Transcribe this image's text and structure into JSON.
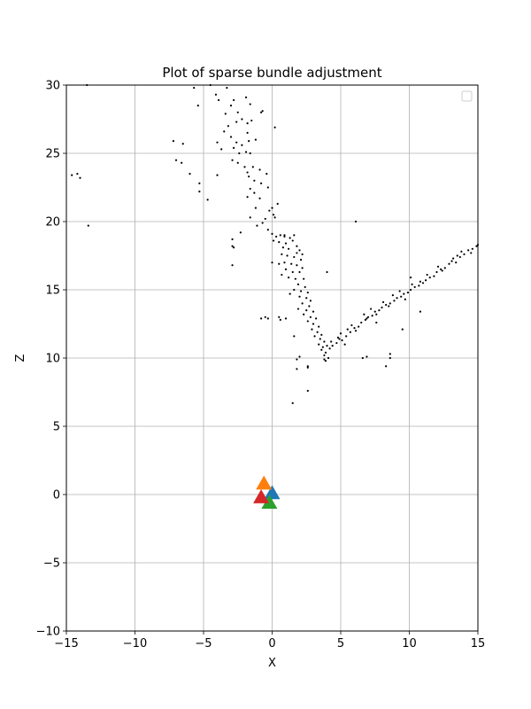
{
  "chart_data": {
    "type": "scatter",
    "title": "Plot of sparse bundle adjustment",
    "xlabel": "X",
    "ylabel": "Z",
    "xlim": [
      -15,
      15
    ],
    "ylim": [
      -10,
      30
    ],
    "xticks": [
      -15,
      -10,
      -5,
      0,
      5,
      10,
      15
    ],
    "yticks": [
      -10,
      -5,
      0,
      5,
      10,
      15,
      20,
      25,
      30
    ],
    "xtick_labels": [
      "−15",
      "−10",
      "−5",
      "0",
      "5",
      "10",
      "15"
    ],
    "ytick_labels": [
      "−10",
      "−5",
      "0",
      "5",
      "10",
      "15",
      "20",
      "25",
      "30"
    ],
    "grid": true,
    "legend": {
      "visible": true,
      "placement": "top-right",
      "entries": []
    },
    "cameras": [
      {
        "x": 0.0,
        "y": 0.1,
        "color": "#1f77b4",
        "marker": "triangle"
      },
      {
        "x": -0.6,
        "y": 0.8,
        "color": "#ff7f0e",
        "marker": "triangle"
      },
      {
        "x": -0.2,
        "y": -0.6,
        "color": "#2ca02c",
        "marker": "triangle"
      },
      {
        "x": -0.8,
        "y": -0.2,
        "color": "#d62728",
        "marker": "triangle"
      }
    ],
    "points_color": "#000000",
    "points": [
      [
        -13.5,
        30.0
      ],
      [
        -14.6,
        23.4
      ],
      [
        -14.2,
        23.5
      ],
      [
        -14.0,
        23.2
      ],
      [
        -13.4,
        19.7
      ],
      [
        -4.5,
        30.0
      ],
      [
        -3.3,
        29.8
      ],
      [
        -5.7,
        29.8
      ],
      [
        -5.4,
        28.5
      ],
      [
        -2.8,
        28.9
      ],
      [
        -1.9,
        29.1
      ],
      [
        -3.0,
        28.5
      ],
      [
        -2.5,
        28.0
      ],
      [
        -1.6,
        28.6
      ],
      [
        -0.8,
        28.0
      ],
      [
        -0.7,
        28.1
      ],
      [
        -3.4,
        27.9
      ],
      [
        -3.9,
        28.9
      ],
      [
        -4.1,
        29.3
      ],
      [
        -2.2,
        27.5
      ],
      [
        -1.8,
        27.2
      ],
      [
        -1.5,
        27.4
      ],
      [
        -3.2,
        27.0
      ],
      [
        -2.6,
        27.3
      ],
      [
        -1.8,
        26.5
      ],
      [
        -3.5,
        26.6
      ],
      [
        -3.0,
        26.2
      ],
      [
        -2.6,
        25.8
      ],
      [
        -4.0,
        25.8
      ],
      [
        0.2,
        26.9
      ],
      [
        -2.2,
        25.6
      ],
      [
        -1.7,
        25.9
      ],
      [
        -1.2,
        26.0
      ],
      [
        -2.8,
        25.4
      ],
      [
        -3.7,
        25.3
      ],
      [
        -2.4,
        25.0
      ],
      [
        -1.9,
        25.1
      ],
      [
        -1.6,
        25.0
      ],
      [
        -2.9,
        24.5
      ],
      [
        -2.5,
        24.3
      ],
      [
        -2.0,
        24.0
      ],
      [
        -1.4,
        24.0
      ],
      [
        -1.8,
        23.6
      ],
      [
        -0.9,
        23.8
      ],
      [
        -1.7,
        23.3
      ],
      [
        -0.4,
        23.5
      ],
      [
        -1.3,
        23.0
      ],
      [
        -0.8,
        22.8
      ],
      [
        -1.6,
        22.4
      ],
      [
        -0.3,
        22.5
      ],
      [
        -1.3,
        22.1
      ],
      [
        -1.8,
        21.8
      ],
      [
        -0.9,
        21.7
      ],
      [
        0.4,
        21.3
      ],
      [
        0.0,
        21.0
      ],
      [
        -1.2,
        21.0
      ],
      [
        -0.2,
        20.8
      ],
      [
        0.1,
        20.5
      ],
      [
        -1.6,
        20.3
      ],
      [
        -0.5,
        20.2
      ],
      [
        0.2,
        20.3
      ],
      [
        -0.7,
        19.9
      ],
      [
        -1.1,
        19.7
      ],
      [
        -0.3,
        19.4
      ],
      [
        -2.3,
        19.2
      ],
      [
        -7.2,
        25.9
      ],
      [
        -7.0,
        24.5
      ],
      [
        -6.6,
        24.3
      ],
      [
        -6.5,
        25.7
      ],
      [
        -6.0,
        23.5
      ],
      [
        -5.3,
        22.8
      ],
      [
        -5.3,
        22.2
      ],
      [
        -4.7,
        21.6
      ],
      [
        -4.0,
        23.4
      ],
      [
        6.1,
        20.0
      ],
      [
        -2.9,
        18.7
      ],
      [
        -2.9,
        18.2
      ],
      [
        -2.8,
        18.1
      ],
      [
        -2.9,
        16.8
      ],
      [
        0.0,
        19.1
      ],
      [
        0.3,
        18.9
      ],
      [
        0.6,
        19.0
      ],
      [
        0.9,
        19.0
      ],
      [
        1.3,
        18.8
      ],
      [
        0.1,
        18.6
      ],
      [
        0.5,
        18.5
      ],
      [
        1.0,
        18.4
      ],
      [
        1.5,
        18.6
      ],
      [
        0.8,
        18.1
      ],
      [
        1.2,
        18.0
      ],
      [
        1.8,
        18.2
      ],
      [
        2.0,
        17.9
      ],
      [
        0.7,
        17.6
      ],
      [
        1.1,
        17.5
      ],
      [
        1.6,
        17.4
      ],
      [
        2.1,
        17.2
      ],
      [
        0.9,
        17.0
      ],
      [
        1.4,
        16.9
      ],
      [
        1.8,
        16.8
      ],
      [
        2.2,
        16.6
      ],
      [
        1.0,
        16.5
      ],
      [
        1.5,
        16.3
      ],
      [
        2.0,
        16.3
      ],
      [
        0.7,
        16.1
      ],
      [
        1.2,
        15.9
      ],
      [
        1.7,
        15.8
      ],
      [
        2.3,
        15.8
      ],
      [
        1.9,
        15.4
      ],
      [
        2.4,
        15.2
      ],
      [
        1.6,
        15.0
      ],
      [
        2.1,
        14.9
      ],
      [
        2.6,
        14.8
      ],
      [
        1.3,
        14.7
      ],
      [
        2.0,
        14.5
      ],
      [
        2.5,
        14.4
      ],
      [
        2.8,
        14.2
      ],
      [
        2.2,
        14.0
      ],
      [
        2.7,
        13.8
      ],
      [
        1.9,
        13.6
      ],
      [
        2.5,
        13.5
      ],
      [
        3.0,
        13.4
      ],
      [
        2.3,
        13.2
      ],
      [
        2.8,
        13.0
      ],
      [
        3.2,
        12.9
      ],
      [
        2.6,
        12.7
      ],
      [
        3.0,
        12.5
      ],
      [
        3.4,
        12.3
      ],
      [
        2.9,
        12.1
      ],
      [
        3.3,
        11.9
      ],
      [
        3.6,
        11.7
      ],
      [
        3.1,
        11.6
      ],
      [
        3.5,
        11.4
      ],
      [
        3.8,
        11.2
      ],
      [
        3.4,
        11.0
      ],
      [
        3.7,
        10.8
      ],
      [
        4.0,
        10.9
      ],
      [
        3.6,
        10.6
      ],
      [
        3.9,
        10.4
      ],
      [
        4.2,
        10.7
      ],
      [
        3.8,
        10.2
      ],
      [
        4.1,
        10.0
      ],
      [
        3.9,
        9.8
      ],
      [
        4.4,
        10.9
      ],
      [
        4.7,
        11.1
      ],
      [
        0.0,
        17.0
      ],
      [
        0.5,
        16.9
      ],
      [
        1.8,
        17.7
      ],
      [
        2.2,
        17.6
      ],
      [
        0.9,
        18.9
      ],
      [
        1.6,
        19.0
      ],
      [
        4.3,
        11.2
      ],
      [
        4.8,
        11.5
      ],
      [
        5.1,
        11.3
      ],
      [
        5.4,
        11.6
      ],
      [
        5.0,
        11.8
      ],
      [
        5.7,
        11.9
      ],
      [
        6.0,
        12.2
      ],
      [
        5.8,
        12.4
      ],
      [
        6.3,
        12.3
      ],
      [
        6.5,
        12.6
      ],
      [
        6.1,
        12.0
      ],
      [
        6.8,
        12.8
      ],
      [
        7.0,
        13.0
      ],
      [
        6.7,
        13.2
      ],
      [
        7.3,
        13.1
      ],
      [
        7.5,
        13.4
      ],
      [
        7.2,
        13.6
      ],
      [
        7.8,
        13.5
      ],
      [
        8.0,
        13.7
      ],
      [
        8.3,
        13.9
      ],
      [
        8.1,
        14.1
      ],
      [
        8.6,
        14.0
      ],
      [
        8.9,
        14.2
      ],
      [
        9.1,
        14.4
      ],
      [
        8.8,
        14.6
      ],
      [
        9.4,
        14.5
      ],
      [
        9.6,
        14.7
      ],
      [
        9.3,
        14.9
      ],
      [
        9.9,
        14.8
      ],
      [
        10.1,
        15.0
      ],
      [
        10.4,
        15.2
      ],
      [
        10.2,
        15.4
      ],
      [
        10.7,
        15.3
      ],
      [
        11.0,
        15.5
      ],
      [
        11.2,
        15.7
      ],
      [
        11.5,
        15.9
      ],
      [
        11.3,
        16.1
      ],
      [
        11.8,
        16.0
      ],
      [
        12.0,
        16.3
      ],
      [
        12.3,
        16.5
      ],
      [
        12.1,
        16.7
      ],
      [
        12.6,
        16.6
      ],
      [
        12.9,
        16.9
      ],
      [
        13.1,
        17.1
      ],
      [
        13.4,
        17.0
      ],
      [
        13.2,
        17.3
      ],
      [
        13.7,
        17.4
      ],
      [
        14.0,
        17.6
      ],
      [
        13.8,
        17.8
      ],
      [
        14.3,
        17.9
      ],
      [
        14.6,
        18.0
      ],
      [
        14.9,
        18.2
      ],
      [
        15.0,
        18.3
      ],
      [
        14.5,
        17.7
      ],
      [
        13.5,
        17.5
      ],
      [
        12.4,
        16.4
      ],
      [
        10.8,
        15.6
      ],
      [
        9.7,
        14.3
      ],
      [
        8.5,
        13.8
      ],
      [
        7.6,
        13.2
      ],
      [
        6.9,
        12.9
      ],
      [
        5.5,
        12.1
      ],
      [
        4.9,
        11.4
      ],
      [
        5.3,
        11.0
      ],
      [
        -0.8,
        12.9
      ],
      [
        -0.5,
        13.0
      ],
      [
        -0.3,
        12.9
      ],
      [
        0.5,
        13.0
      ],
      [
        0.6,
        12.8
      ],
      [
        1.0,
        12.9
      ],
      [
        1.6,
        11.6
      ],
      [
        1.8,
        9.9
      ],
      [
        1.8,
        9.2
      ],
      [
        2.0,
        10.1
      ],
      [
        2.6,
        9.4
      ],
      [
        2.6,
        9.3
      ],
      [
        3.8,
        9.9
      ],
      [
        4.0,
        16.3
      ],
      [
        1.5,
        6.7
      ],
      [
        2.6,
        7.6
      ],
      [
        6.6,
        10.0
      ],
      [
        6.9,
        10.1
      ],
      [
        8.3,
        9.4
      ],
      [
        8.6,
        10.3
      ],
      [
        8.6,
        10.0
      ],
      [
        9.5,
        12.1
      ],
      [
        10.1,
        15.9
      ],
      [
        10.8,
        13.4
      ],
      [
        7.6,
        12.6
      ]
    ]
  }
}
